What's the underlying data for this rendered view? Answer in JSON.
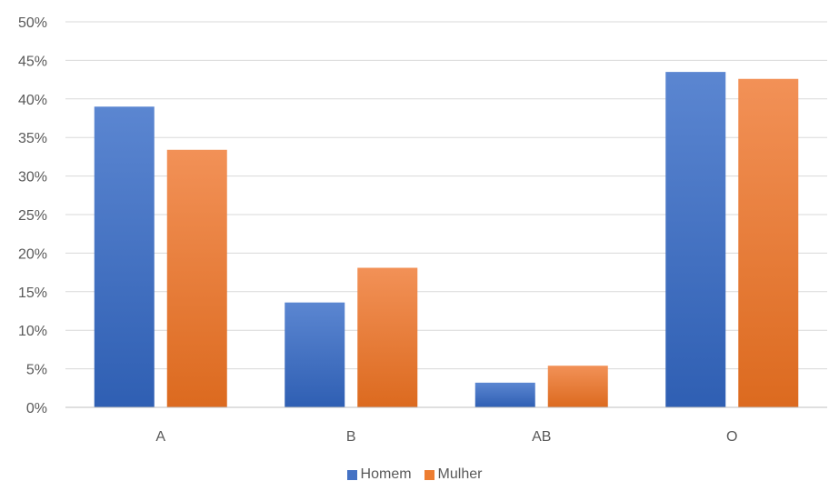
{
  "chart_data": {
    "type": "bar",
    "categories": [
      "A",
      "B",
      "AB",
      "O"
    ],
    "series": [
      {
        "name": "Homem",
        "values": [
          39,
          13.6,
          3.2,
          43.5
        ]
      },
      {
        "name": "Mulher",
        "values": [
          33.4,
          18.1,
          5.4,
          42.6
        ]
      }
    ],
    "ylim": [
      0,
      50
    ],
    "yticks": [
      "0%",
      "5%",
      "10%",
      "15%",
      "20%",
      "25%",
      "30%",
      "35%",
      "40%",
      "45%",
      "50%"
    ],
    "ytick_values": [
      0,
      5,
      10,
      15,
      20,
      25,
      30,
      35,
      40,
      45,
      50
    ],
    "grid": true,
    "legend_position": "bottom",
    "colors": {
      "Homem": "#4472C4",
      "Mulher": "#ED7D31"
    }
  }
}
